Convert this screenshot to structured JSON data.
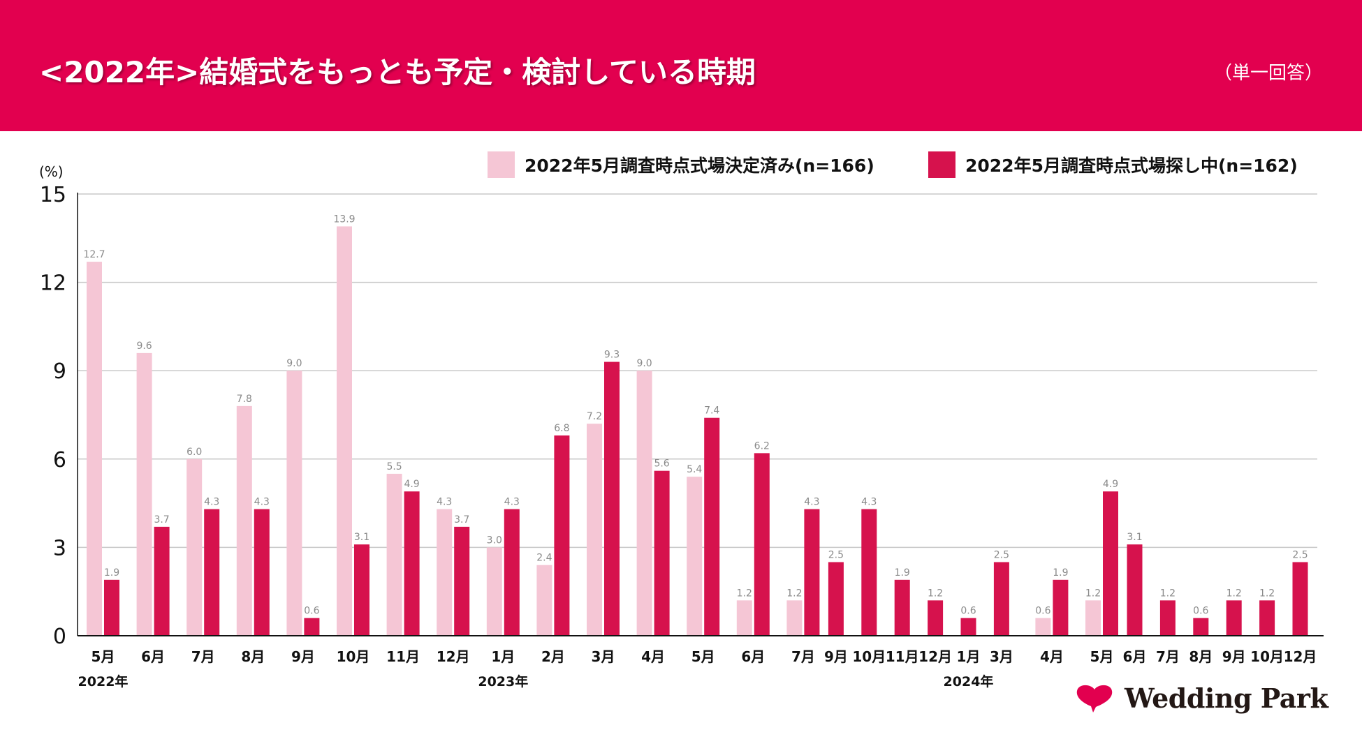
{
  "header": {
    "title": "<2022年>結婚式をもっとも予定・検討している時期",
    "subtitle": "（単一回答）"
  },
  "colors": {
    "header_bg": "#e2004f",
    "series_decided": "#f5c6d5",
    "series_searching": "#d6124d",
    "gridline": "#c8c8c8",
    "data_label": "#8a8a8a",
    "brand_heart": "#e2004f"
  },
  "logo": {
    "text": "Wedding Park",
    "icon": "heart-icon"
  },
  "chart_data": {
    "type": "bar",
    "title": "<2022年>結婚式をもっとも予定・検討している時期",
    "subtitle": "（単一回答）",
    "ylabel": "(%)",
    "xlabel": "",
    "ylim": [
      0,
      15
    ],
    "yticks": [
      0,
      3,
      6,
      9,
      12,
      15
    ],
    "grid": true,
    "legend_position": "top-right",
    "categories": [
      {
        "label": "5月",
        "year": "2022年"
      },
      {
        "label": "6月"
      },
      {
        "label": "7月"
      },
      {
        "label": "8月"
      },
      {
        "label": "9月"
      },
      {
        "label": "10月"
      },
      {
        "label": "11月"
      },
      {
        "label": "12月"
      },
      {
        "label": "1月",
        "year": "2023年"
      },
      {
        "label": "2月"
      },
      {
        "label": "3月"
      },
      {
        "label": "4月"
      },
      {
        "label": "5月"
      },
      {
        "label": "6月"
      },
      {
        "label": "7月"
      },
      {
        "label": "9月"
      },
      {
        "label": "10月"
      },
      {
        "label": "11月"
      },
      {
        "label": "12月"
      },
      {
        "label": "1月",
        "year": "2024年"
      },
      {
        "label": "3月"
      },
      {
        "label": "4月"
      },
      {
        "label": "5月"
      },
      {
        "label": "6月"
      },
      {
        "label": "7月"
      },
      {
        "label": "8月"
      },
      {
        "label": "9月"
      },
      {
        "label": "10月"
      },
      {
        "label": "12月"
      }
    ],
    "year_labels": [
      {
        "text": "2022年",
        "at_category": 0
      },
      {
        "text": "2023年",
        "at_category": 8
      },
      {
        "text": "2024年",
        "at_category": 19
      }
    ],
    "series": [
      {
        "name": "2022年5月調査時点式場決定済み(n=166)",
        "color": "#f5c6d5",
        "values": [
          12.7,
          9.6,
          6.0,
          7.8,
          9.0,
          13.9,
          5.5,
          4.3,
          3.0,
          2.4,
          7.2,
          9.0,
          5.4,
          1.2,
          1.2,
          null,
          null,
          null,
          null,
          null,
          null,
          0.6,
          1.2,
          null,
          null,
          null,
          null,
          null,
          null
        ]
      },
      {
        "name": "2022年5月調査時点式場探し中(n=162)",
        "color": "#d6124d",
        "values": [
          1.9,
          3.7,
          4.3,
          4.3,
          0.6,
          3.1,
          4.9,
          3.7,
          4.3,
          6.8,
          9.3,
          5.6,
          7.4,
          6.2,
          4.3,
          2.5,
          4.3,
          1.9,
          1.2,
          0.6,
          2.5,
          1.9,
          4.9,
          3.1,
          1.2,
          0.6,
          1.2,
          1.2,
          2.5
        ]
      }
    ]
  }
}
